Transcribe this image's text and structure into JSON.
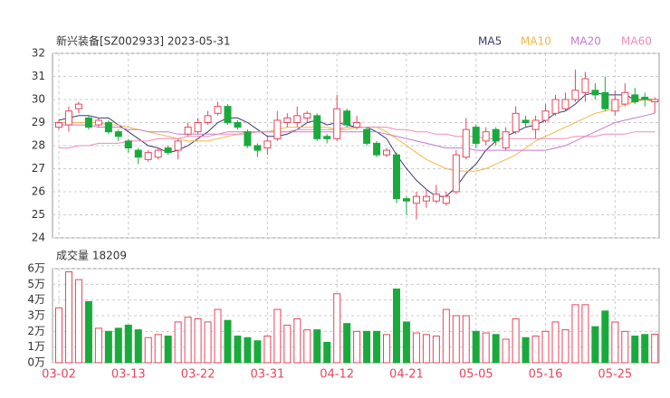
{
  "chart_data": [
    {
      "type": "candlestick",
      "title": "新兴装备[SZ002933] 2023-05-31",
      "up_color": "#e8465c",
      "down_color": "#1aaa3c",
      "open": [
        28.8,
        28.9,
        29.6,
        29.2,
        28.9,
        29.0,
        28.6,
        28.2,
        27.8,
        27.4,
        27.5,
        27.9,
        27.8,
        28.5,
        28.6,
        29.0,
        29.4,
        29.7,
        29.0,
        28.6,
        28.0,
        27.9,
        28.3,
        29.0,
        29.0,
        29.2,
        29.3,
        28.4,
        28.3,
        29.5,
        28.8,
        28.7,
        28.1,
        27.6,
        27.6,
        25.7,
        25.5,
        25.6,
        25.6,
        25.5,
        26.0,
        27.5,
        28.8,
        28.2,
        28.7,
        27.9,
        28.6,
        29.1,
        28.7,
        29.1,
        29.4,
        29.6,
        30.0,
        30.3,
        30.4,
        30.3,
        29.5,
        29.8,
        30.2,
        30.1,
        29.9
      ],
      "high": [
        29.1,
        29.7,
        29.9,
        29.3,
        29.2,
        29.1,
        28.7,
        28.3,
        27.9,
        27.8,
        27.9,
        28.0,
        28.3,
        29.0,
        29.2,
        29.5,
        29.9,
        29.8,
        29.1,
        28.7,
        28.1,
        28.4,
        29.5,
        29.4,
        29.7,
        29.5,
        29.4,
        28.5,
        30.2,
        29.6,
        29.3,
        28.8,
        28.2,
        27.9,
        27.7,
        25.8,
        26.0,
        26.1,
        26.3,
        26.0,
        27.8,
        29.2,
        28.9,
        28.8,
        28.8,
        28.8,
        29.7,
        29.3,
        29.3,
        29.8,
        30.2,
        30.3,
        31.3,
        31.2,
        30.7,
        31.0,
        30.4,
        30.7,
        30.5,
        30.3,
        30.1
      ],
      "low": [
        28.7,
        28.6,
        29.4,
        28.7,
        28.8,
        28.5,
        28.2,
        27.7,
        27.2,
        27.3,
        27.4,
        27.6,
        27.4,
        28.4,
        28.5,
        28.9,
        29.3,
        28.9,
        28.7,
        27.9,
        27.5,
        27.6,
        28.2,
        28.8,
        28.8,
        29.0,
        28.2,
        28.1,
        28.2,
        28.8,
        28.7,
        28.0,
        27.5,
        27.5,
        25.5,
        25.0,
        24.8,
        25.3,
        25.5,
        25.4,
        25.9,
        27.4,
        27.9,
        28.0,
        28.0,
        27.8,
        28.5,
        28.8,
        28.3,
        29.0,
        29.3,
        29.5,
        29.9,
        29.9,
        30.0,
        29.5,
        29.3,
        29.7,
        29.8,
        29.7,
        29.4
      ],
      "close": [
        29.0,
        29.5,
        29.8,
        28.8,
        29.1,
        28.6,
        28.4,
        27.9,
        27.5,
        27.7,
        27.8,
        27.7,
        28.2,
        28.8,
        29.0,
        29.3,
        29.7,
        29.0,
        28.8,
        28.0,
        27.8,
        28.2,
        29.1,
        29.2,
        29.3,
        29.4,
        28.3,
        28.3,
        29.6,
        28.9,
        29.0,
        28.1,
        27.6,
        27.8,
        25.7,
        25.6,
        25.8,
        25.8,
        25.9,
        25.8,
        27.6,
        28.7,
        28.1,
        28.6,
        28.2,
        28.6,
        29.4,
        29.0,
        29.1,
        29.5,
        30.0,
        30.0,
        30.4,
        30.9,
        30.2,
        29.6,
        30.0,
        30.3,
        29.9,
        30.0,
        30.0
      ],
      "series": [
        {
          "name": "MA5",
          "color": "#3a3a6e",
          "values": [
            29.1,
            29.2,
            29.3,
            29.3,
            29.2,
            29.2,
            28.9,
            28.6,
            28.3,
            28.0,
            27.9,
            27.7,
            27.8,
            28.0,
            28.3,
            28.6,
            29.0,
            29.2,
            29.2,
            29.0,
            28.7,
            28.4,
            28.4,
            28.5,
            28.7,
            29.0,
            29.1,
            28.9,
            29.0,
            28.9,
            28.8,
            28.8,
            28.6,
            28.3,
            27.6,
            27.0,
            26.5,
            26.1,
            25.8,
            25.8,
            26.2,
            26.8,
            27.2,
            27.8,
            28.2,
            28.4,
            28.6,
            28.8,
            28.9,
            29.1,
            29.4,
            29.5,
            29.8,
            30.2,
            30.3,
            30.2,
            30.2,
            30.2,
            30.0,
            30.0,
            30.0
          ]
        },
        {
          "name": "MA10",
          "color": "#f5b642",
          "values": [
            29.0,
            29.0,
            29.0,
            29.0,
            29.0,
            28.9,
            28.9,
            28.8,
            28.7,
            28.6,
            28.5,
            28.4,
            28.3,
            28.2,
            28.2,
            28.2,
            28.3,
            28.4,
            28.5,
            28.6,
            28.6,
            28.6,
            28.7,
            28.8,
            28.8,
            28.8,
            28.8,
            28.8,
            28.7,
            28.7,
            28.8,
            28.8,
            28.8,
            28.6,
            28.3,
            28.0,
            27.7,
            27.4,
            27.2,
            27.0,
            26.9,
            26.9,
            26.9,
            27.0,
            27.2,
            27.4,
            27.6,
            27.9,
            28.2,
            28.4,
            28.6,
            28.8,
            29.0,
            29.2,
            29.4,
            29.5,
            29.6,
            29.8,
            29.9,
            30.0,
            29.9
          ]
        },
        {
          "name": "MA20",
          "color": "#c57ad1",
          "values": [
            28.9,
            28.9,
            28.9,
            28.9,
            28.8,
            28.8,
            28.8,
            28.7,
            28.7,
            28.6,
            28.6,
            28.6,
            28.5,
            28.5,
            28.5,
            28.5,
            28.5,
            28.6,
            28.6,
            28.6,
            28.6,
            28.6,
            28.6,
            28.6,
            28.6,
            28.6,
            28.6,
            28.6,
            28.6,
            28.6,
            28.6,
            28.6,
            28.6,
            28.5,
            28.4,
            28.3,
            28.2,
            28.1,
            28.0,
            27.9,
            27.9,
            27.9,
            27.8,
            27.8,
            27.8,
            27.8,
            27.8,
            27.8,
            27.8,
            27.8,
            27.9,
            28.0,
            28.2,
            28.4,
            28.6,
            28.8,
            29.0,
            29.1,
            29.2,
            29.3,
            29.4
          ]
        },
        {
          "name": "MA60",
          "color": "#f08ab8",
          "values": [
            27.9,
            27.9,
            28.0,
            28.0,
            28.1,
            28.1,
            28.1,
            28.2,
            28.2,
            28.2,
            28.3,
            28.3,
            28.3,
            28.4,
            28.4,
            28.4,
            28.5,
            28.5,
            28.5,
            28.5,
            28.6,
            28.6,
            28.6,
            28.6,
            28.7,
            28.7,
            28.7,
            28.7,
            28.7,
            28.8,
            28.8,
            28.8,
            28.8,
            28.8,
            28.7,
            28.7,
            28.6,
            28.6,
            28.5,
            28.5,
            28.4,
            28.4,
            28.4,
            28.3,
            28.3,
            28.3,
            28.3,
            28.3,
            28.3,
            28.3,
            28.3,
            28.3,
            28.4,
            28.4,
            28.4,
            28.5,
            28.5,
            28.5,
            28.6,
            28.6,
            28.6
          ]
        }
      ],
      "ylim": [
        24,
        32
      ],
      "yticks": [
        24,
        25,
        26,
        27,
        28,
        29,
        30,
        31,
        32
      ],
      "grid": true
    },
    {
      "type": "bar",
      "title": "成交量 18209",
      "categories": [
        "03-02",
        null,
        null,
        null,
        null,
        null,
        null,
        "03-13",
        null,
        null,
        null,
        null,
        null,
        null,
        "03-22",
        null,
        null,
        null,
        null,
        null,
        null,
        "03-31",
        null,
        null,
        null,
        null,
        null,
        null,
        "04-12",
        null,
        null,
        null,
        null,
        null,
        null,
        "04-21",
        null,
        null,
        null,
        null,
        null,
        null,
        "05-05",
        null,
        null,
        null,
        null,
        null,
        null,
        "05-16",
        null,
        null,
        null,
        null,
        null,
        null,
        "05-25",
        null,
        null,
        null,
        null
      ],
      "values": [
        3.5,
        5.8,
        5.3,
        3.9,
        2.2,
        2.0,
        2.2,
        2.4,
        2.1,
        1.6,
        1.8,
        1.7,
        2.6,
        2.9,
        2.8,
        2.6,
        3.4,
        2.7,
        1.7,
        1.6,
        1.4,
        1.7,
        3.4,
        2.4,
        2.8,
        2.1,
        2.1,
        1.3,
        4.4,
        2.5,
        2.0,
        2.0,
        2.0,
        1.8,
        4.7,
        2.6,
        1.9,
        1.8,
        1.7,
        3.4,
        3.0,
        3.0,
        2.0,
        1.9,
        1.8,
        1.5,
        2.8,
        1.6,
        1.7,
        2.0,
        2.6,
        2.1,
        3.7,
        3.7,
        2.3,
        3.3,
        2.6,
        2.0,
        1.7,
        1.8,
        1.8209
      ],
      "ylim": [
        0,
        6
      ],
      "yticks": [
        {
          "value": 0,
          "label": "0万"
        },
        {
          "value": 1,
          "label": "1万"
        },
        {
          "value": 2,
          "label": "2万"
        },
        {
          "value": 3,
          "label": "3万"
        },
        {
          "value": 4,
          "label": "4万"
        },
        {
          "value": 5,
          "label": "5万"
        },
        {
          "value": 6,
          "label": "6万"
        }
      ],
      "grid": true
    }
  ]
}
